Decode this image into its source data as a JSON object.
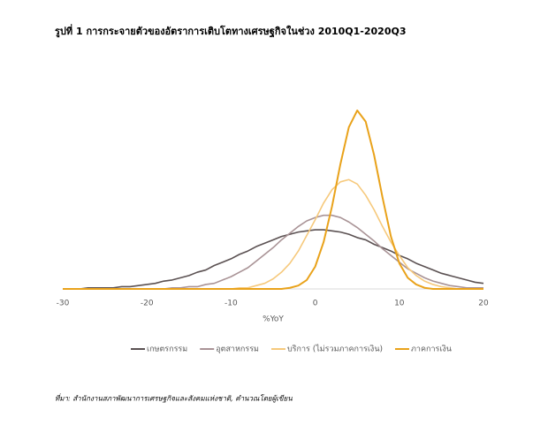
{
  "chart_data": {
    "type": "line",
    "title": "รูปที่ 1 การกระจายตัวของอัตราการเติบโตทางเศรษฐกิจในช่วง 2010Q1-2020Q3",
    "x_label": "%YoY",
    "source": "ที่มา: สำนักงานสภาพัฒนาการเศรษฐกิจและสังคมแห่งชาติ, คำนวณโดยผู้เขียน",
    "x": [
      -30,
      -29,
      -28,
      -27,
      -26,
      -25,
      -24,
      -23,
      -22,
      -21,
      -20,
      -19,
      -18,
      -17,
      -16,
      -15,
      -14,
      -13,
      -12,
      -11,
      -10,
      -9,
      -8,
      -7,
      -6,
      -5,
      -4,
      -3,
      -2,
      -1,
      0,
      1,
      2,
      3,
      4,
      5,
      6,
      7,
      8,
      9,
      10,
      11,
      12,
      13,
      14,
      15,
      16,
      17,
      18,
      19,
      20
    ],
    "xlim": [
      -30,
      20
    ],
    "xticks": [
      -30,
      -20,
      -10,
      0,
      10,
      20
    ],
    "ylim": [
      0,
      0.2
    ],
    "series": [
      {
        "name": "เกษตรกรรม",
        "color": "#5b5152",
        "values": [
          0,
          0,
          0,
          0.001,
          0.001,
          0.001,
          0.001,
          0.002,
          0.002,
          0.003,
          0.004,
          0.005,
          0.007,
          0.008,
          0.01,
          0.012,
          0.015,
          0.017,
          0.021,
          0.024,
          0.027,
          0.031,
          0.034,
          0.038,
          0.041,
          0.044,
          0.047,
          0.049,
          0.051,
          0.052,
          0.053,
          0.053,
          0.052,
          0.051,
          0.049,
          0.046,
          0.044,
          0.04,
          0.037,
          0.034,
          0.03,
          0.027,
          0.023,
          0.02,
          0.017,
          0.014,
          0.012,
          0.01,
          0.008,
          0.006,
          0.005
        ]
      },
      {
        "name": "อุตสาหกรรม",
        "color": "#a99396",
        "values": [
          0,
          0,
          0,
          0,
          0,
          0,
          0,
          0,
          0,
          0,
          0,
          0,
          0,
          0.001,
          0.001,
          0.002,
          0.002,
          0.004,
          0.005,
          0.008,
          0.011,
          0.015,
          0.019,
          0.025,
          0.031,
          0.037,
          0.044,
          0.05,
          0.056,
          0.061,
          0.064,
          0.066,
          0.066,
          0.064,
          0.06,
          0.055,
          0.049,
          0.043,
          0.036,
          0.03,
          0.024,
          0.018,
          0.014,
          0.01,
          0.007,
          0.005,
          0.003,
          0.002,
          0.001,
          0.001,
          0.001
        ]
      },
      {
        "name": "บริการ (ไม่รวมภาคการเงิน)",
        "color": "#f6c97c",
        "values": [
          0,
          0,
          0,
          0,
          0,
          0,
          0,
          0,
          0,
          0,
          0,
          0,
          0,
          0,
          0,
          0,
          0,
          0,
          0,
          0,
          0,
          0.001,
          0.001,
          0.003,
          0.005,
          0.009,
          0.015,
          0.023,
          0.034,
          0.048,
          0.062,
          0.077,
          0.089,
          0.096,
          0.098,
          0.094,
          0.084,
          0.071,
          0.056,
          0.042,
          0.03,
          0.019,
          0.012,
          0.007,
          0.004,
          0.002,
          0.001,
          0,
          0,
          0,
          0
        ]
      },
      {
        "name": "ภาคการเงิน",
        "color": "#e9a21a",
        "values": [
          0,
          0,
          0,
          0,
          0,
          0,
          0,
          0,
          0,
          0,
          0,
          0,
          0,
          0,
          0,
          0,
          0,
          0,
          0,
          0,
          0,
          0,
          0,
          0,
          0,
          0,
          0,
          0.001,
          0.003,
          0.008,
          0.02,
          0.042,
          0.074,
          0.112,
          0.145,
          0.16,
          0.15,
          0.12,
          0.082,
          0.047,
          0.023,
          0.01,
          0.004,
          0.001,
          0,
          0,
          0,
          0,
          0,
          0,
          0
        ]
      }
    ]
  }
}
